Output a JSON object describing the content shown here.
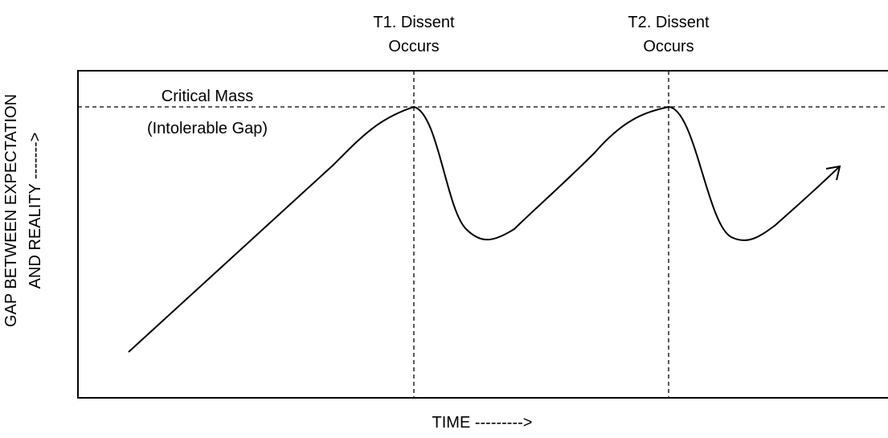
{
  "events": [
    {
      "lines": [
        "T1. Dissent",
        "Occurs"
      ]
    },
    {
      "lines": [
        "T2. Dissent",
        "Occurs"
      ]
    }
  ],
  "threshold": {
    "lines": [
      "Critical Mass",
      "(Intolerable Gap)"
    ]
  },
  "axes": {
    "x_label": "TIME --------->",
    "y_label": [
      "GAP BETWEEN EXPECTATION",
      "AND REALITY ------->"
    ]
  }
}
